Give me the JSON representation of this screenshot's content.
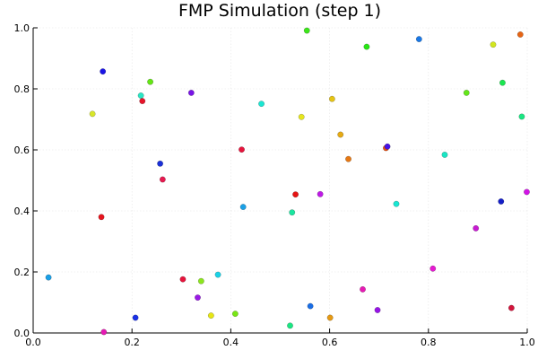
{
  "chart_data": {
    "type": "scatter",
    "title": "FMP Simulation (step 1)",
    "xlabel": "",
    "ylabel": "",
    "xlim": [
      0,
      1
    ],
    "ylim": [
      0,
      1
    ],
    "xticks": [
      "0.0",
      "0.2",
      "0.4",
      "0.6",
      "0.8",
      "1.0"
    ],
    "yticks": [
      "0.0",
      "0.2",
      "0.4",
      "0.6",
      "0.8",
      "1.0"
    ],
    "grid": true,
    "legend": "none",
    "points": [
      {
        "x": 0.031,
        "y": 0.182,
        "color": "#1a9fe6"
      },
      {
        "x": 0.12,
        "y": 0.718,
        "color": "#d8e62a"
      },
      {
        "x": 0.138,
        "y": 0.38,
        "color": "#e6141e"
      },
      {
        "x": 0.141,
        "y": 0.857,
        "color": "#1a14e6"
      },
      {
        "x": 0.143,
        "y": 0.003,
        "color": "#e61ab4"
      },
      {
        "x": 0.207,
        "y": 0.05,
        "color": "#1a30e6"
      },
      {
        "x": 0.218,
        "y": 0.778,
        "color": "#2ae6c4"
      },
      {
        "x": 0.221,
        "y": 0.76,
        "color": "#e6142a"
      },
      {
        "x": 0.237,
        "y": 0.823,
        "color": "#64e614"
      },
      {
        "x": 0.257,
        "y": 0.555,
        "color": "#1a30d8"
      },
      {
        "x": 0.262,
        "y": 0.503,
        "color": "#e61a50"
      },
      {
        "x": 0.303,
        "y": 0.176,
        "color": "#e6143c"
      },
      {
        "x": 0.32,
        "y": 0.787,
        "color": "#7814e6"
      },
      {
        "x": 0.333,
        "y": 0.116,
        "color": "#9a1ae6"
      },
      {
        "x": 0.34,
        "y": 0.17,
        "color": "#8ce61e"
      },
      {
        "x": 0.36,
        "y": 0.057,
        "color": "#e6e614"
      },
      {
        "x": 0.374,
        "y": 0.191,
        "color": "#1ad2e6"
      },
      {
        "x": 0.409,
        "y": 0.063,
        "color": "#78e614"
      },
      {
        "x": 0.422,
        "y": 0.601,
        "color": "#e6143c"
      },
      {
        "x": 0.425,
        "y": 0.413,
        "color": "#1aa0e6"
      },
      {
        "x": 0.462,
        "y": 0.751,
        "color": "#1ae6d2"
      },
      {
        "x": 0.52,
        "y": 0.024,
        "color": "#1ae682"
      },
      {
        "x": 0.524,
        "y": 0.395,
        "color": "#1ae6a0"
      },
      {
        "x": 0.531,
        "y": 0.454,
        "color": "#e61414"
      },
      {
        "x": 0.543,
        "y": 0.708,
        "color": "#e6e61e"
      },
      {
        "x": 0.554,
        "y": 0.991,
        "color": "#3ce61a"
      },
      {
        "x": 0.561,
        "y": 0.088,
        "color": "#1a6ee6"
      },
      {
        "x": 0.581,
        "y": 0.455,
        "color": "#be1ae6"
      },
      {
        "x": 0.601,
        "y": 0.05,
        "color": "#e69a14"
      },
      {
        "x": 0.605,
        "y": 0.767,
        "color": "#e6c414"
      },
      {
        "x": 0.622,
        "y": 0.65,
        "color": "#e6aa14"
      },
      {
        "x": 0.638,
        "y": 0.57,
        "color": "#e67814"
      },
      {
        "x": 0.667,
        "y": 0.143,
        "color": "#e61ab4"
      },
      {
        "x": 0.675,
        "y": 0.938,
        "color": "#28e614"
      },
      {
        "x": 0.697,
        "y": 0.075,
        "color": "#9614e6"
      },
      {
        "x": 0.714,
        "y": 0.606,
        "color": "#e65014"
      },
      {
        "x": 0.717,
        "y": 0.611,
        "color": "#4614e6"
      },
      {
        "x": 0.735,
        "y": 0.423,
        "color": "#1ae6d2"
      },
      {
        "x": 0.781,
        "y": 0.963,
        "color": "#1a78e6"
      },
      {
        "x": 0.809,
        "y": 0.211,
        "color": "#e61ad2"
      },
      {
        "x": 0.833,
        "y": 0.584,
        "color": "#1ae6c4"
      },
      {
        "x": 0.877,
        "y": 0.787,
        "color": "#64e61a"
      },
      {
        "x": 0.896,
        "y": 0.343,
        "color": "#c81ad2"
      },
      {
        "x": 0.931,
        "y": 0.945,
        "color": "#d2e61e"
      },
      {
        "x": 0.947,
        "y": 0.431,
        "color": "#141ec8"
      },
      {
        "x": 0.95,
        "y": 0.82,
        "color": "#1ae650"
      },
      {
        "x": 0.968,
        "y": 0.082,
        "color": "#d2143c"
      },
      {
        "x": 0.986,
        "y": 0.978,
        "color": "#e66414"
      },
      {
        "x": 0.989,
        "y": 0.709,
        "color": "#1ae682"
      },
      {
        "x": 0.999,
        "y": 0.462,
        "color": "#d214e6"
      }
    ]
  }
}
